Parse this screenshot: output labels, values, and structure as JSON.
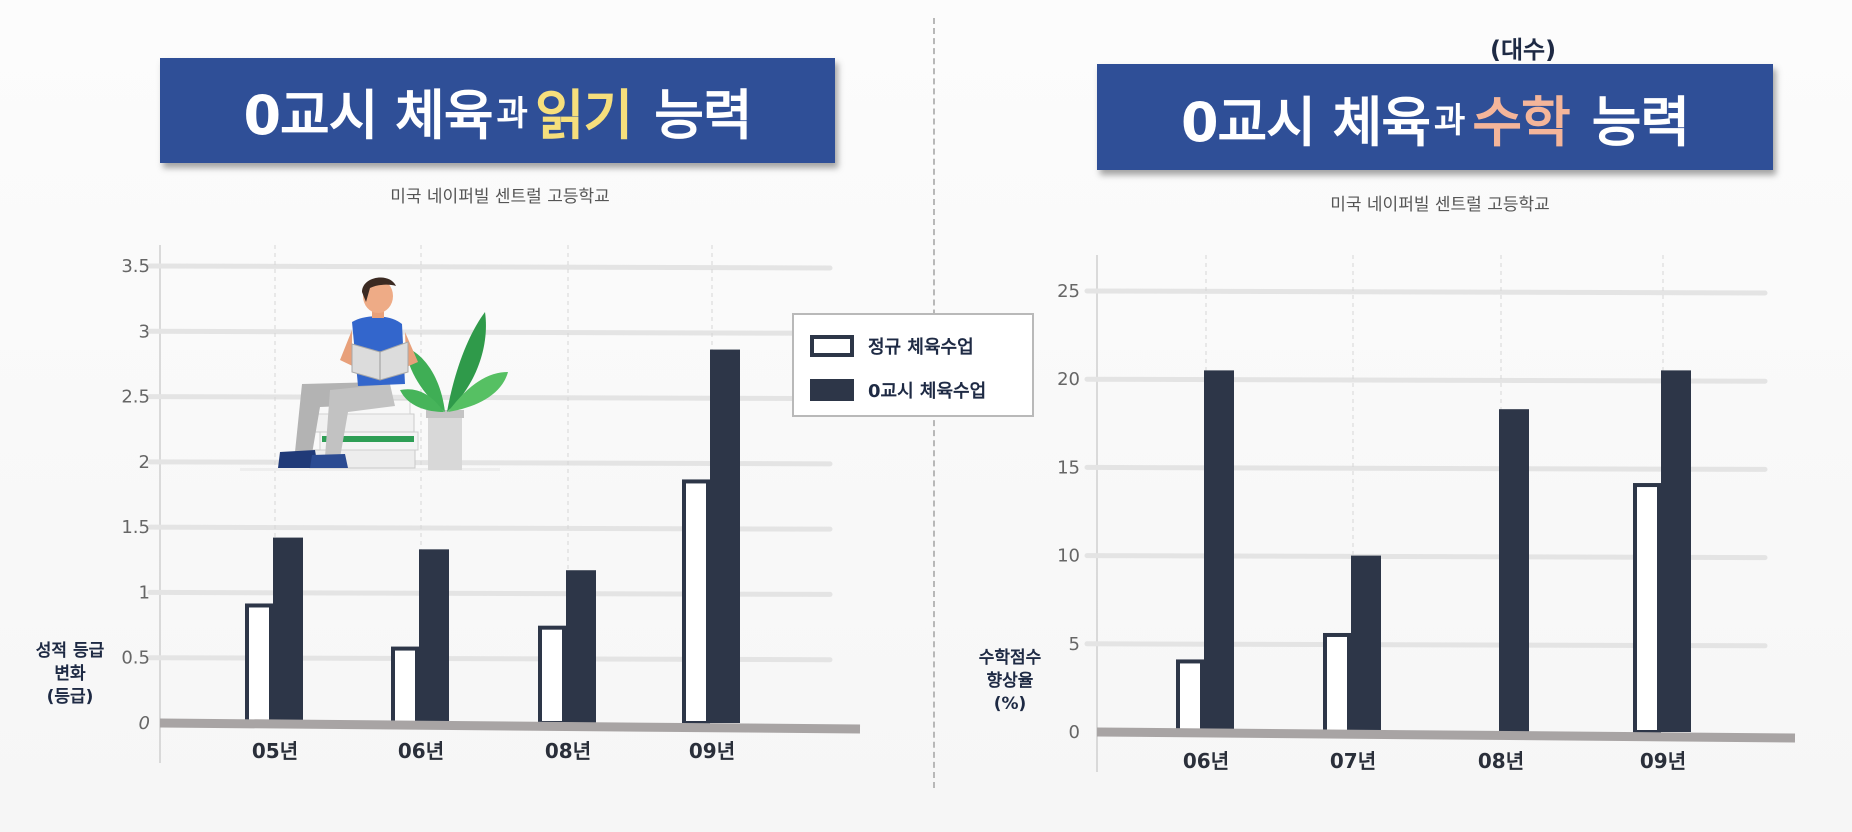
{
  "left": {
    "title_part1": "0교시 체육",
    "title_particle": "과",
    "title_highlight": "읽기",
    "title_part2": "능력",
    "subtitle": "미국 네이퍼빌 센트럴 고등학교",
    "ylabel": "성적 등급\n변화\n(등급)"
  },
  "right": {
    "unit_note": "(대수)",
    "title_part1": "0교시 체육",
    "title_particle": "과",
    "title_highlight": "수학",
    "title_part2": "능력",
    "subtitle": "미국 네이퍼빌 센트럴 고등학교",
    "ylabel": "수학점수\n향상율\n(%)"
  },
  "legend": {
    "regular": "정규 체육수업",
    "zero_period": "0교시 체육수업"
  },
  "colors": {
    "banner": "#2f4f97",
    "bar_dark": "#2d3648",
    "highlight_reading": "#f6df7c",
    "highlight_math": "#f4b59a",
    "axis_base": "#a8a4a4",
    "grid": "#e4e4e4"
  },
  "illustration": {
    "icon": "person-reading-books-plant-icon"
  },
  "chart_data": [
    {
      "type": "bar",
      "categories": [
        "05년",
        "06년",
        "08년",
        "09년"
      ],
      "series": [
        {
          "name": "정규 체육수업",
          "values": [
            0.9,
            0.57,
            0.73,
            1.85
          ]
        },
        {
          "name": "0교시 체육수업",
          "values": [
            1.42,
            1.33,
            1.17,
            2.86
          ]
        }
      ],
      "ylim": [
        0,
        3.5
      ],
      "yticks": [
        "0",
        "0.5",
        "1",
        "1.5",
        "2",
        "2.5",
        "3",
        "3.5"
      ],
      "xlabel": "",
      "ylabel": "성적 등급 변화 (등급)",
      "grid": true,
      "legend": "right"
    },
    {
      "type": "bar",
      "categories": [
        "06년",
        "07년",
        "08년",
        "09년"
      ],
      "series": [
        {
          "name": "정규 체육수업",
          "values": [
            4,
            5.5,
            0,
            14
          ]
        },
        {
          "name": "0교시 체육수업",
          "values": [
            20.5,
            10,
            18.3,
            20.5
          ]
        }
      ],
      "ylim": [
        0,
        25
      ],
      "yticks": [
        "0",
        "5",
        "10",
        "15",
        "20",
        "25"
      ],
      "xlabel": "",
      "ylabel": "수학점수 향상율 (%)",
      "grid": true,
      "legend": "none"
    }
  ]
}
